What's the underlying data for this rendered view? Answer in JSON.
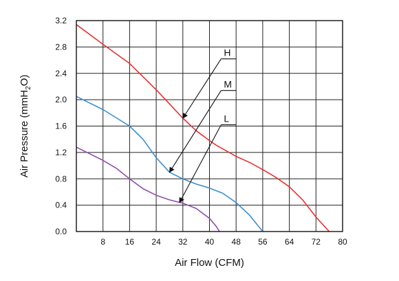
{
  "chart_data": {
    "type": "line",
    "xlabel": "Air Flow (CFM)",
    "ylabel_main": "Air Pressure (mmH",
    "ylabel_sub": "2",
    "ylabel_end": "O)",
    "xlim": [
      0,
      80
    ],
    "ylim": [
      0,
      3.2
    ],
    "x_ticks": [
      8,
      16,
      24,
      32,
      40,
      48,
      56,
      64,
      72,
      80
    ],
    "x_tick_labels": [
      "8",
      "16",
      "24",
      "32",
      "40",
      "48",
      "56",
      "64",
      "72",
      "80"
    ],
    "y_ticks": [
      0.0,
      0.4,
      0.8,
      1.2,
      1.6,
      2.0,
      2.4,
      2.8,
      3.2
    ],
    "y_tick_labels": [
      "0.0",
      "0.4",
      "0.8",
      "1.2",
      "1.6",
      "2.0",
      "2.4",
      "2.8",
      "3.2"
    ],
    "grid": true,
    "series": [
      {
        "name": "H",
        "color": "#e8302f",
        "points": [
          [
            0,
            3.14
          ],
          [
            8,
            2.84
          ],
          [
            16,
            2.55
          ],
          [
            24,
            2.15
          ],
          [
            32,
            1.72
          ],
          [
            36,
            1.53
          ],
          [
            40,
            1.38
          ],
          [
            42,
            1.31
          ],
          [
            48,
            1.14
          ],
          [
            52,
            1.05
          ],
          [
            56,
            0.94
          ],
          [
            60,
            0.82
          ],
          [
            64,
            0.68
          ],
          [
            68,
            0.48
          ],
          [
            72,
            0.22
          ],
          [
            76,
            0.0
          ]
        ]
      },
      {
        "name": "M",
        "color": "#3a8fcf",
        "points": [
          [
            0,
            2.05
          ],
          [
            8,
            1.85
          ],
          [
            16,
            1.6
          ],
          [
            20,
            1.4
          ],
          [
            24,
            1.12
          ],
          [
            28,
            0.9
          ],
          [
            32,
            0.8
          ],
          [
            36,
            0.72
          ],
          [
            40,
            0.66
          ],
          [
            44,
            0.58
          ],
          [
            48,
            0.44
          ],
          [
            52,
            0.25
          ],
          [
            56,
            0.0
          ]
        ]
      },
      {
        "name": "L",
        "color": "#8e4fa8",
        "points": [
          [
            0,
            1.28
          ],
          [
            8,
            1.08
          ],
          [
            12,
            0.96
          ],
          [
            16,
            0.8
          ],
          [
            20,
            0.65
          ],
          [
            24,
            0.55
          ],
          [
            28,
            0.48
          ],
          [
            32,
            0.43
          ],
          [
            36,
            0.35
          ],
          [
            40,
            0.2
          ],
          [
            42,
            0.08
          ],
          [
            43,
            0.0
          ]
        ]
      }
    ],
    "annotations": [
      {
        "label": "H",
        "text_at": [
          43.5,
          2.62
        ],
        "arrow_to": [
          32,
          1.72
        ]
      },
      {
        "label": "M",
        "text_at": [
          43.5,
          2.14
        ],
        "arrow_to": [
          28,
          0.9
        ]
      },
      {
        "label": "L",
        "text_at": [
          43.5,
          1.62
        ],
        "arrow_to": [
          31,
          0.44
        ]
      }
    ]
  }
}
